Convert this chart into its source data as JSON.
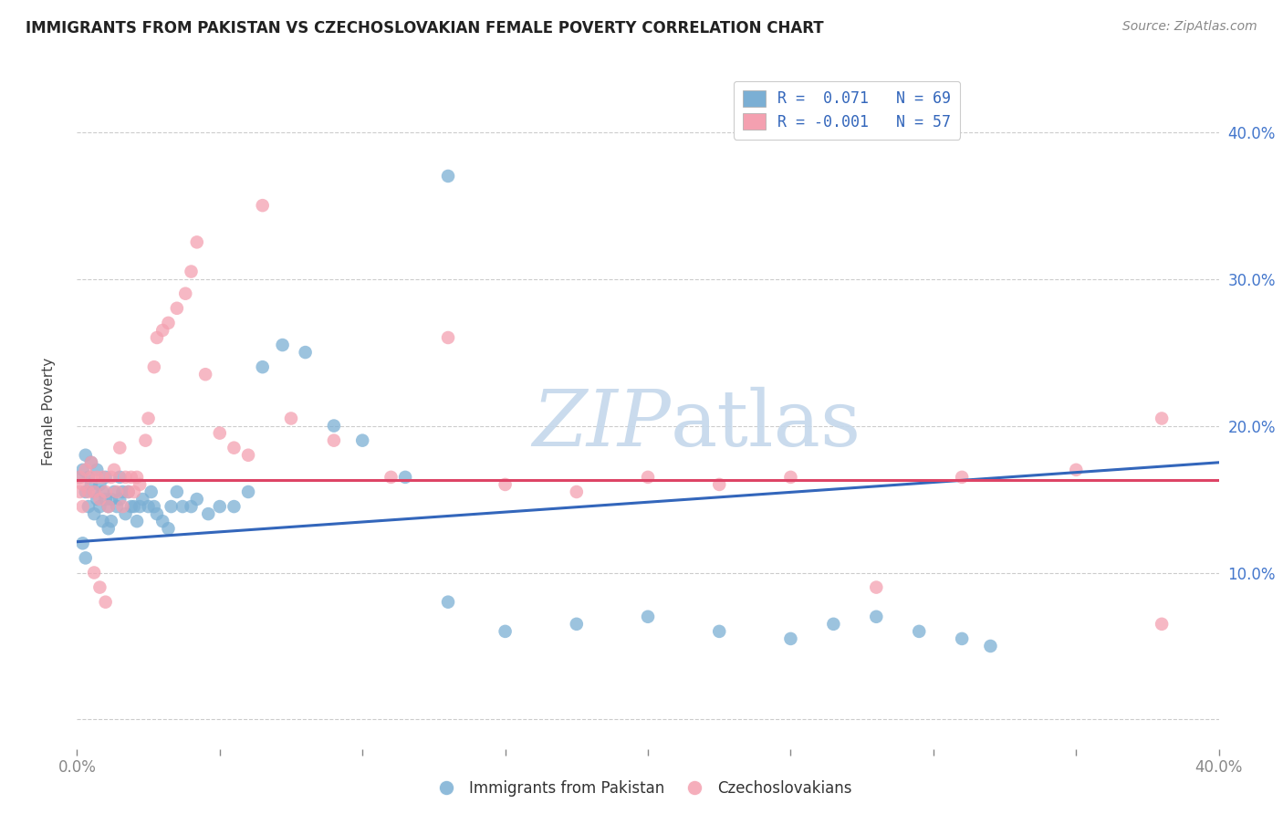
{
  "title": "IMMIGRANTS FROM PAKISTAN VS CZECHOSLOVAKIAN FEMALE POVERTY CORRELATION CHART",
  "source": "Source: ZipAtlas.com",
  "ylabel": "Female Poverty",
  "xlim": [
    0.0,
    0.4
  ],
  "ylim": [
    -0.02,
    0.44
  ],
  "blue_color": "#7bafd4",
  "pink_color": "#f4a0b0",
  "trend_blue_color": "#3366bb",
  "trend_pink_color": "#dd4466",
  "watermark_color": "#c5d8eb",
  "blue_R": 0.071,
  "blue_N": 69,
  "pink_R": -0.001,
  "pink_N": 57,
  "blue_trend_y0": 0.121,
  "blue_trend_y1": 0.175,
  "pink_trend_y0": 0.163,
  "pink_trend_y1": 0.163,
  "background_color": "#ffffff",
  "grid_color": "#cccccc",
  "blue_x": [
    0.001,
    0.002,
    0.003,
    0.003,
    0.004,
    0.004,
    0.005,
    0.005,
    0.006,
    0.006,
    0.007,
    0.007,
    0.008,
    0.008,
    0.009,
    0.009,
    0.01,
    0.01,
    0.011,
    0.011,
    0.012,
    0.012,
    0.013,
    0.014,
    0.015,
    0.015,
    0.016,
    0.017,
    0.018,
    0.019,
    0.02,
    0.021,
    0.022,
    0.023,
    0.025,
    0.026,
    0.027,
    0.028,
    0.03,
    0.032,
    0.033,
    0.035,
    0.037,
    0.04,
    0.042,
    0.046,
    0.05,
    0.055,
    0.06,
    0.065,
    0.072,
    0.08,
    0.09,
    0.1,
    0.115,
    0.13,
    0.15,
    0.175,
    0.2,
    0.225,
    0.25,
    0.265,
    0.28,
    0.295,
    0.31,
    0.32,
    0.002,
    0.003,
    0.13
  ],
  "blue_y": [
    0.165,
    0.17,
    0.155,
    0.18,
    0.165,
    0.145,
    0.16,
    0.175,
    0.155,
    0.14,
    0.17,
    0.15,
    0.16,
    0.145,
    0.155,
    0.135,
    0.15,
    0.165,
    0.145,
    0.13,
    0.15,
    0.135,
    0.155,
    0.145,
    0.165,
    0.15,
    0.155,
    0.14,
    0.155,
    0.145,
    0.145,
    0.135,
    0.145,
    0.15,
    0.145,
    0.155,
    0.145,
    0.14,
    0.135,
    0.13,
    0.145,
    0.155,
    0.145,
    0.145,
    0.15,
    0.14,
    0.145,
    0.145,
    0.155,
    0.24,
    0.255,
    0.25,
    0.2,
    0.19,
    0.165,
    0.08,
    0.06,
    0.065,
    0.07,
    0.06,
    0.055,
    0.065,
    0.07,
    0.06,
    0.055,
    0.05,
    0.12,
    0.11,
    0.37
  ],
  "pink_x": [
    0.001,
    0.002,
    0.003,
    0.004,
    0.005,
    0.005,
    0.006,
    0.007,
    0.008,
    0.009,
    0.01,
    0.011,
    0.012,
    0.013,
    0.014,
    0.015,
    0.016,
    0.017,
    0.018,
    0.019,
    0.02,
    0.021,
    0.022,
    0.024,
    0.025,
    0.027,
    0.028,
    0.03,
    0.032,
    0.035,
    0.038,
    0.04,
    0.042,
    0.045,
    0.05,
    0.055,
    0.06,
    0.065,
    0.075,
    0.09,
    0.11,
    0.13,
    0.15,
    0.175,
    0.2,
    0.225,
    0.25,
    0.28,
    0.31,
    0.35,
    0.38,
    0.38,
    0.001,
    0.002,
    0.006,
    0.008,
    0.01
  ],
  "pink_y": [
    0.165,
    0.16,
    0.17,
    0.155,
    0.165,
    0.175,
    0.155,
    0.165,
    0.15,
    0.165,
    0.155,
    0.145,
    0.165,
    0.17,
    0.155,
    0.185,
    0.145,
    0.165,
    0.155,
    0.165,
    0.155,
    0.165,
    0.16,
    0.19,
    0.205,
    0.24,
    0.26,
    0.265,
    0.27,
    0.28,
    0.29,
    0.305,
    0.325,
    0.235,
    0.195,
    0.185,
    0.18,
    0.35,
    0.205,
    0.19,
    0.165,
    0.26,
    0.16,
    0.155,
    0.165,
    0.16,
    0.165,
    0.09,
    0.165,
    0.17,
    0.205,
    0.065,
    0.155,
    0.145,
    0.1,
    0.09,
    0.08
  ]
}
